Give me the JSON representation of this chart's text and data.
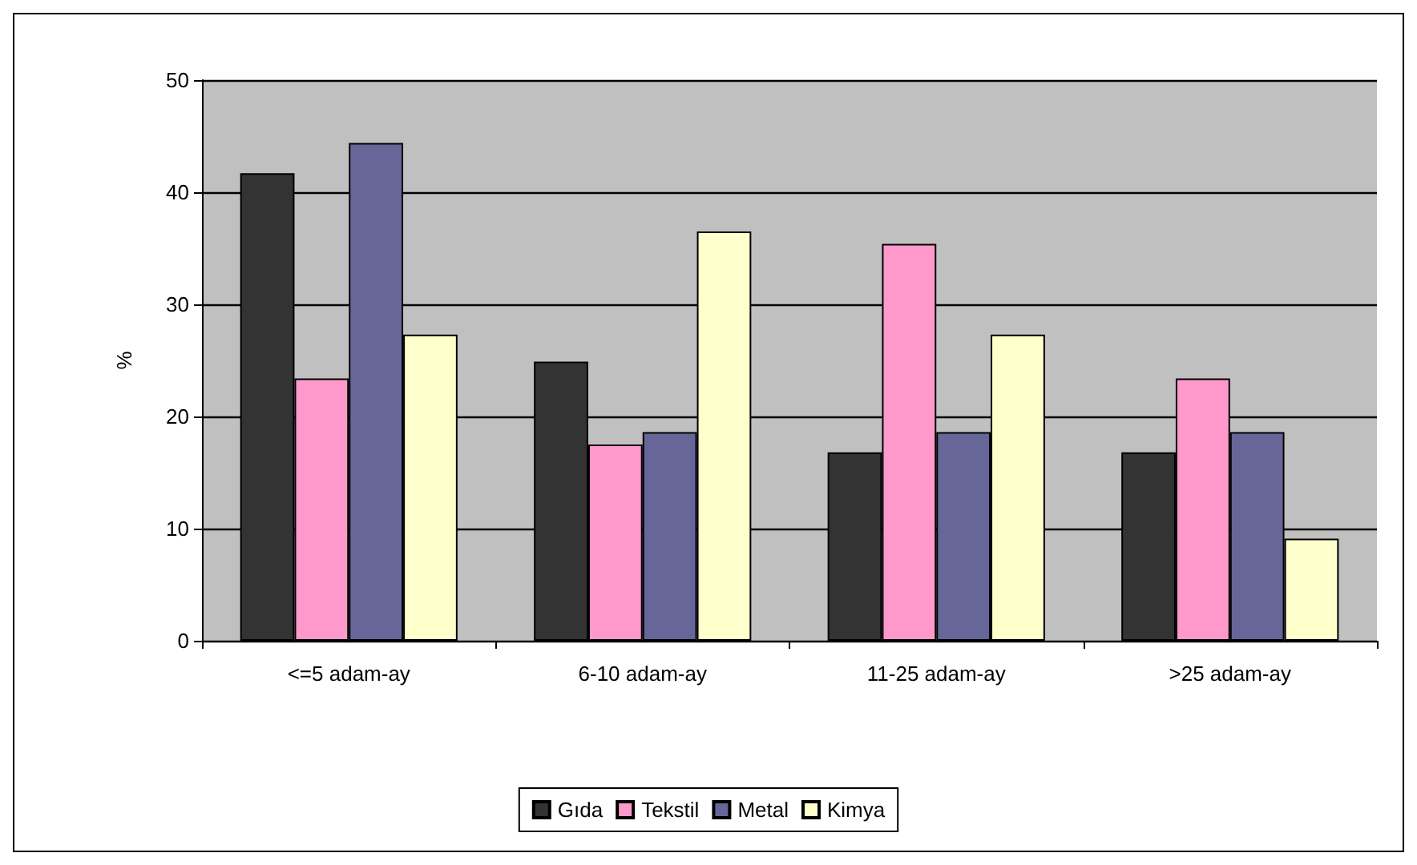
{
  "chart_data": {
    "type": "bar",
    "ylabel": "%",
    "categories": [
      "<=5 adam-ay",
      "6-10 adam-ay",
      "11-25 adam-ay",
      ">25 adam-ay"
    ],
    "series": [
      {
        "name": "Gıda",
        "color": "#333333",
        "values": [
          41.7,
          24.9,
          16.8,
          16.8
        ]
      },
      {
        "name": "Tekstil",
        "color": "#ff99cc",
        "values": [
          23.4,
          17.5,
          35.4,
          23.4
        ]
      },
      {
        "name": "Metal",
        "color": "#666699",
        "values": [
          44.4,
          18.6,
          18.6,
          18.6
        ]
      },
      {
        "name": "Kimya",
        "color": "#ffffcc",
        "values": [
          27.3,
          36.5,
          27.3,
          9.1
        ]
      }
    ],
    "ylim": [
      0,
      50
    ],
    "yticks": [
      0,
      10,
      20,
      30,
      40,
      50
    ],
    "grid": "y",
    "legend": "bottom"
  }
}
